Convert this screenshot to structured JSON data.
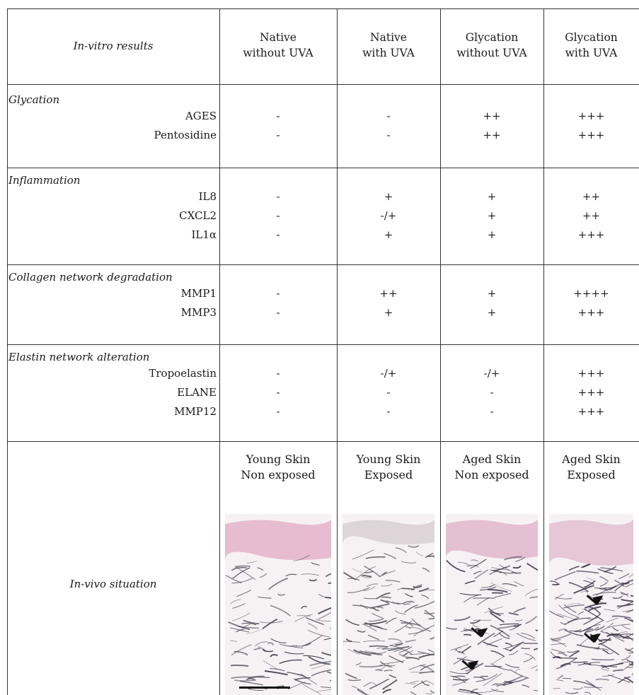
{
  "header": {
    "corner": "In-vitro results",
    "cols": [
      [
        "Native",
        "without UVA"
      ],
      [
        "Native",
        "with UVA"
      ],
      [
        "Glycation",
        "without UVA"
      ],
      [
        "Glycation",
        "with UVA"
      ]
    ]
  },
  "sections": [
    {
      "title": "Glycation",
      "rows": [
        {
          "label": "AGES",
          "values": [
            "-",
            "-",
            "++",
            "+++"
          ]
        },
        {
          "label": "Pentosidine",
          "values": [
            "-",
            "-",
            "++",
            "+++"
          ]
        }
      ]
    },
    {
      "title": "Inflammation",
      "rows": [
        {
          "label": "IL8",
          "values": [
            "-",
            "+",
            "+",
            "++"
          ]
        },
        {
          "label": "CXCL2",
          "values": [
            "-",
            "-/+",
            "+",
            "++"
          ]
        },
        {
          "label": "IL1α",
          "values": [
            "-",
            "+",
            "+",
            "+++"
          ]
        }
      ]
    },
    {
      "title": "Collagen network degradation",
      "rows": [
        {
          "label": "MMP1",
          "values": [
            "-",
            "++",
            "+",
            "++++"
          ]
        },
        {
          "label": "MMP3",
          "values": [
            "-",
            "+",
            "+",
            "+++"
          ]
        }
      ]
    },
    {
      "title": "Elastin network alteration",
      "rows": [
        {
          "label": "Tropoelastin",
          "values": [
            "-",
            "-/+",
            "-/+",
            "+++"
          ]
        },
        {
          "label": "ELANE",
          "values": [
            "-",
            "-",
            "-",
            "+++"
          ]
        },
        {
          "label": "MMP12",
          "values": [
            "-",
            "-",
            "-",
            "+++"
          ]
        }
      ]
    }
  ],
  "invivo": {
    "label": "In-vivo situation",
    "cols": [
      [
        "Young Skin",
        "Non exposed"
      ],
      [
        "Young Skin",
        "Exposed"
      ],
      [
        "Aged Skin",
        "Non exposed"
      ],
      [
        "Aged Skin",
        "Exposed"
      ]
    ]
  }
}
